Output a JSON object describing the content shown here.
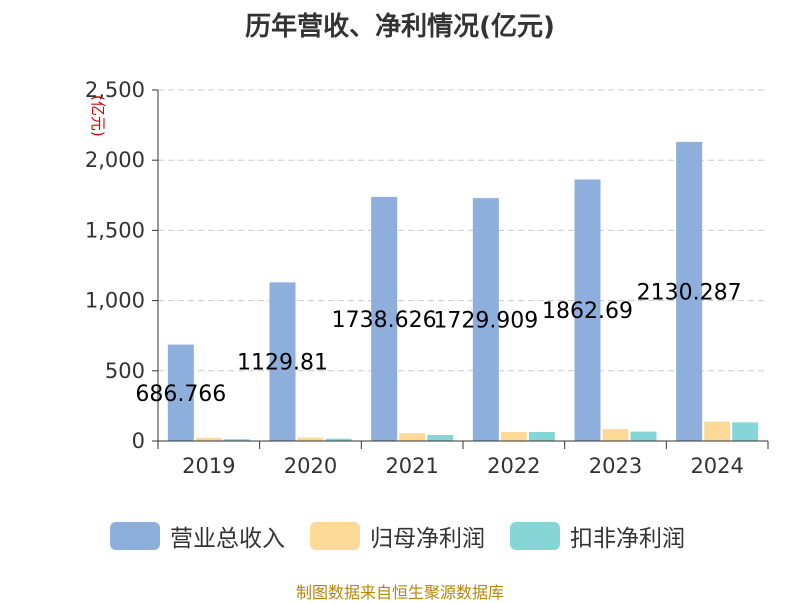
{
  "chart_data": {
    "type": "bar",
    "title": "历年营收、净利情况(亿元)",
    "ylabel": "(亿元)",
    "ylim": [
      0,
      2500
    ],
    "yticks": [
      0,
      500,
      1000,
      1500,
      2000,
      2500
    ],
    "ytick_labels": [
      "0",
      "500",
      "1,000",
      "1,500",
      "2,000",
      "2,500"
    ],
    "grid": true,
    "legend_position": "bottom",
    "categories": [
      "2019",
      "2020",
      "2021",
      "2022",
      "2023",
      "2024"
    ],
    "series": [
      {
        "name": "营业总收入",
        "color": "#8eaedb",
        "values": [
          686.766,
          1129.81,
          1738.626,
          1729.909,
          1862.69,
          2130.287
        ],
        "data_labels": [
          "686.766",
          "1129.81",
          "1738.626",
          "1729.909",
          "1862.69",
          "2130.287"
        ]
      },
      {
        "name": "归母净利润",
        "color": "#fdd998",
        "values": [
          23,
          25,
          55,
          64,
          84,
          138
        ]
      },
      {
        "name": "扣非净利润",
        "color": "#86d6d8",
        "values": [
          13,
          16,
          43,
          64,
          67,
          133
        ]
      }
    ]
  },
  "source": "制图数据来自恒生聚源数据库"
}
